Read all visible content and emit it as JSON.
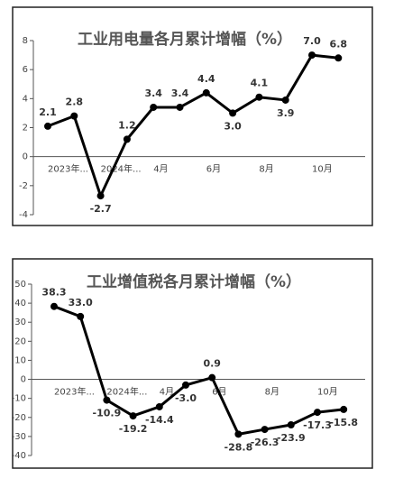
{
  "chart_data": [
    {
      "type": "line",
      "title": "工业用电量各月累计增幅（%）",
      "categories": [
        "2023年...",
        null,
        "2024年...",
        null,
        "4月",
        null,
        "6月",
        null,
        "8月",
        null,
        "10月",
        null
      ],
      "series": [
        {
          "color": "#000000",
          "values": [
            2.1,
            2.8,
            -2.7,
            1.2,
            3.4,
            3.4,
            4.4,
            3.0,
            4.1,
            3.9,
            7.0,
            6.8
          ],
          "value_labels": [
            "2.1",
            "2.8",
            "-2.7",
            "1.2",
            "3.4",
            "3.4",
            "4.4",
            "3.0",
            "4.1",
            "3.9",
            "7.0",
            "6.8"
          ]
        }
      ],
      "ylim": [
        -4,
        8
      ],
      "yticks": [
        -4,
        -2,
        0,
        2,
        4,
        6,
        8
      ],
      "grid": false
    },
    {
      "type": "line",
      "title": "工业增值税各月累计增幅（%）",
      "categories": [
        "2023年...",
        null,
        "2024年...",
        null,
        "4月",
        null,
        "6月",
        null,
        "8月",
        null,
        "10月",
        null
      ],
      "series": [
        {
          "color": "#000000",
          "values": [
            38.3,
            33.0,
            -10.9,
            -19.2,
            -14.4,
            -3.0,
            0.9,
            -28.8,
            -26.3,
            -23.9,
            -17.3,
            -15.8
          ],
          "value_labels": [
            "38.3",
            "33.0",
            "-10.9",
            "-19.2",
            "-14.4",
            "-3.0",
            "0.9",
            "-28.8",
            "-26.3",
            "-23.9",
            "-17.3",
            "-15.8"
          ]
        }
      ],
      "ylim": [
        -40,
        50
      ],
      "yticks": [
        -40,
        -30,
        -20,
        -10,
        0,
        10,
        20,
        30,
        40,
        50
      ],
      "grid": false
    }
  ]
}
